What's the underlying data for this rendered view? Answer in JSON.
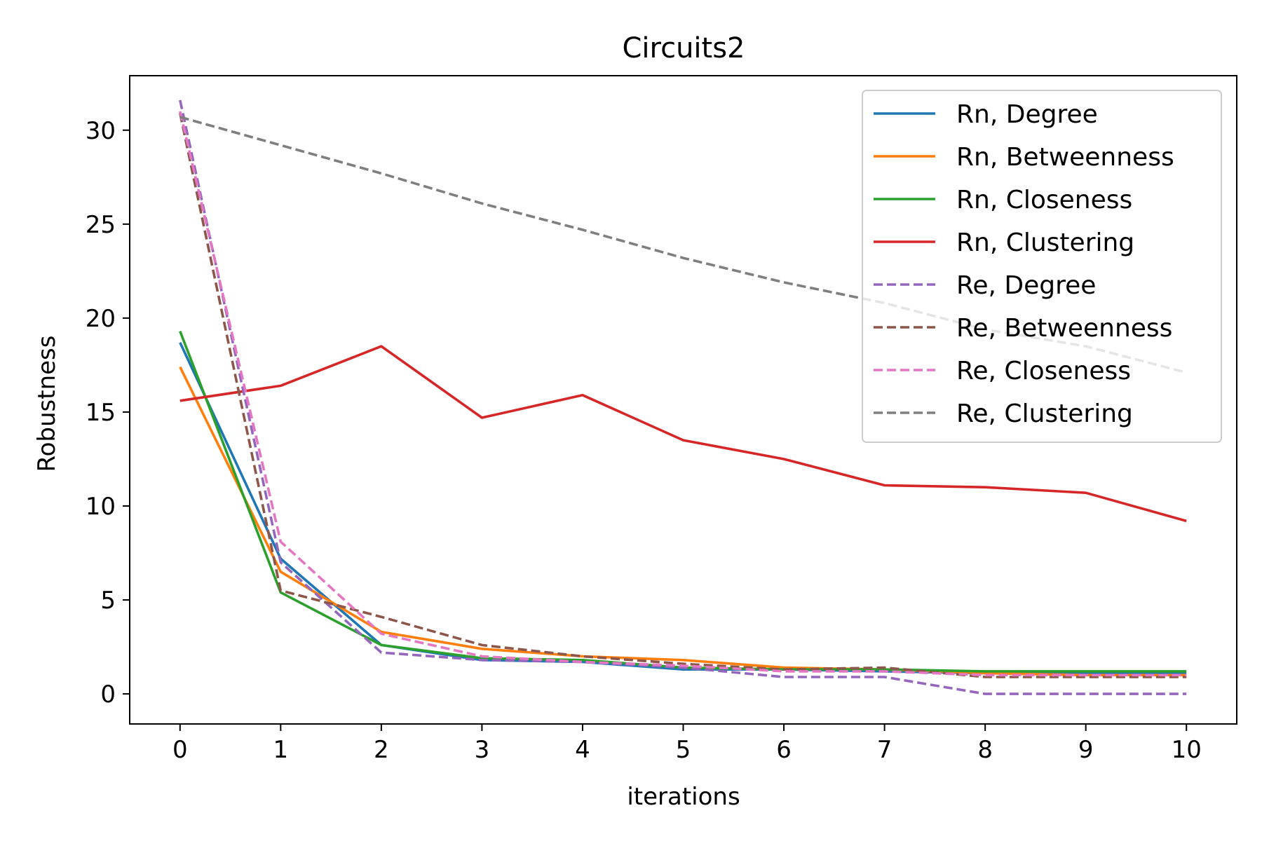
{
  "chart_data": {
    "type": "line",
    "title": "Circuits2",
    "xlabel": "iterations",
    "ylabel": "Robustness",
    "x": [
      0,
      1,
      2,
      3,
      4,
      5,
      6,
      7,
      8,
      9,
      10
    ],
    "xticks": [
      "0",
      "1",
      "2",
      "3",
      "4",
      "5",
      "6",
      "7",
      "8",
      "9",
      "10"
    ],
    "yticks": [
      0,
      5,
      10,
      15,
      20,
      25,
      30
    ],
    "ytick_labels": [
      "0",
      "5",
      "10",
      "15",
      "20",
      "25",
      "30"
    ],
    "xlim": [
      -0.5,
      10.5
    ],
    "ylim": [
      -1.6,
      32.9
    ],
    "grid": false,
    "legend_position": "top-right",
    "series": [
      {
        "name": "Rn, Degree",
        "color": "#1f77b4",
        "dash": "solid",
        "values": [
          18.7,
          7.2,
          2.6,
          1.8,
          1.7,
          1.3,
          1.3,
          1.2,
          1.1,
          1.1,
          1.1
        ]
      },
      {
        "name": "Rn, Betweenness",
        "color": "#ff7f0e",
        "dash": "solid",
        "values": [
          17.4,
          6.5,
          3.3,
          2.4,
          2.0,
          1.8,
          1.4,
          1.3,
          1.1,
          1.0,
          1.0
        ]
      },
      {
        "name": "Rn, Closeness",
        "color": "#2ca02c",
        "dash": "solid",
        "values": [
          19.3,
          5.4,
          2.6,
          1.9,
          1.8,
          1.4,
          1.3,
          1.3,
          1.2,
          1.2,
          1.2
        ]
      },
      {
        "name": "Rn, Clustering",
        "color": "#d62728",
        "dash": "solid",
        "values": [
          15.6,
          16.4,
          18.5,
          14.7,
          15.9,
          13.5,
          12.5,
          11.1,
          11.0,
          10.7,
          9.2
        ]
      },
      {
        "name": "Re, Degree",
        "color": "#9467bd",
        "dash": "dashed",
        "values": [
          31.6,
          7.0,
          2.2,
          1.8,
          1.7,
          1.4,
          0.9,
          0.9,
          0.0,
          0.0,
          0.0
        ]
      },
      {
        "name": "Re, Betweenness",
        "color": "#8c564b",
        "dash": "dashed",
        "values": [
          30.9,
          5.5,
          4.1,
          2.6,
          2.0,
          1.6,
          1.3,
          1.4,
          0.9,
          0.9,
          0.9
        ]
      },
      {
        "name": "Re, Closeness",
        "color": "#e377c2",
        "dash": "dashed",
        "values": [
          31.0,
          8.1,
          3.2,
          2.0,
          1.7,
          1.5,
          1.2,
          1.2,
          1.0,
          1.0,
          1.0
        ]
      },
      {
        "name": "Re, Clustering",
        "color": "#7f7f7f",
        "dash": "dashed",
        "values": [
          30.7,
          29.2,
          27.7,
          26.1,
          24.7,
          23.2,
          21.9,
          20.8,
          19.4,
          18.5,
          17.1
        ]
      }
    ]
  }
}
